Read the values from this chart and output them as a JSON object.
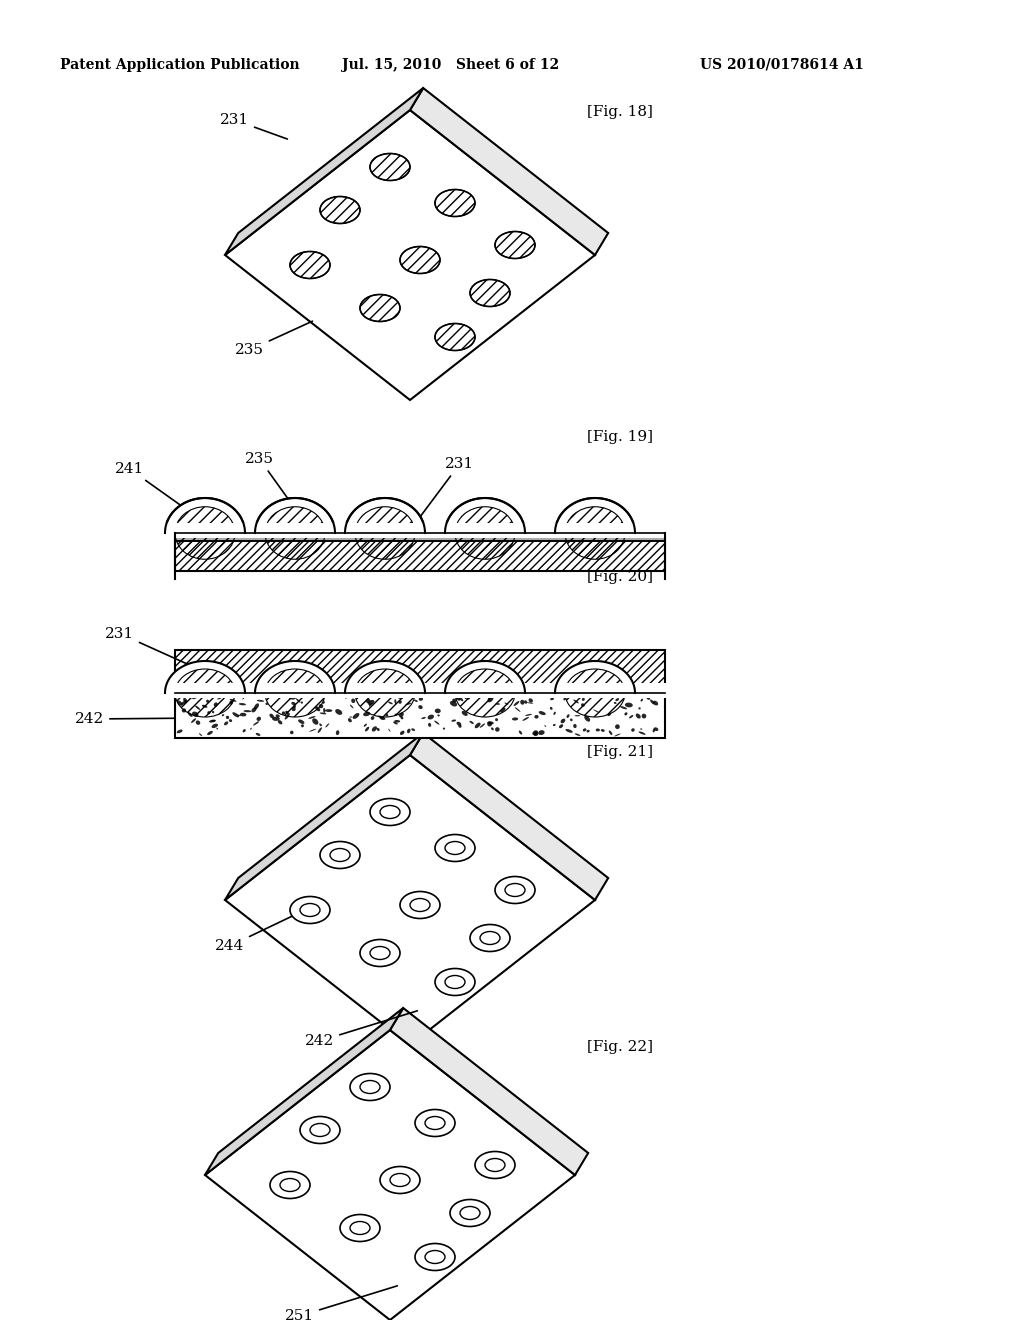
{
  "background_color": "#ffffff",
  "header_left": "Patent Application Publication",
  "header_mid": "Jul. 15, 2010   Sheet 6 of 12",
  "header_right": "US 2010/0178614 A1",
  "fig18_label": "[Fig. 18]",
  "fig19_label": "[Fig. 19]",
  "fig20_label": "[Fig. 20]",
  "fig21_label": "[Fig. 21]",
  "fig22_label": "[Fig. 22]"
}
